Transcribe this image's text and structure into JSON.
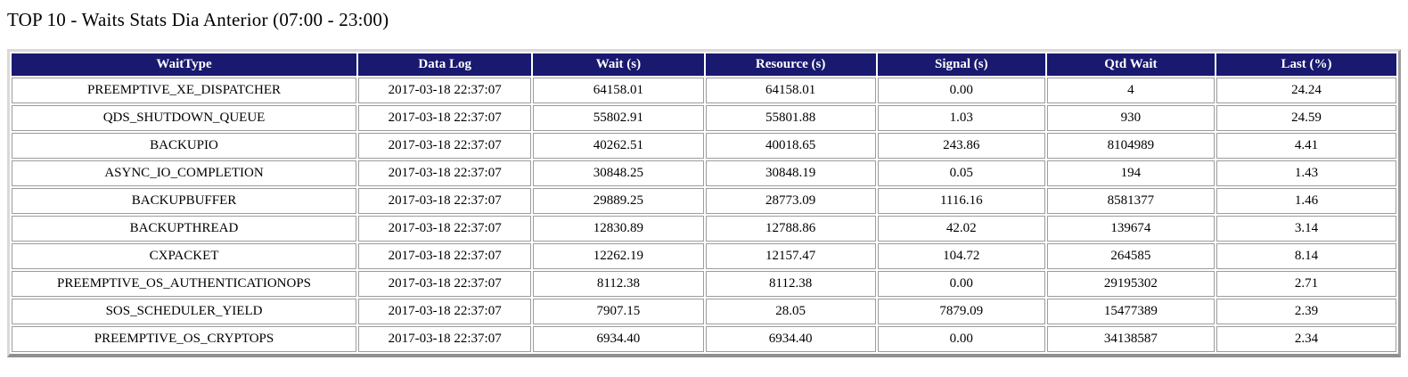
{
  "page": {
    "title": "TOP 10 - Waits Stats Dia Anterior (07:00 - 23:00)"
  },
  "colors": {
    "header_background": "#191970",
    "header_text": "#ffffff",
    "cell_border": "#9c9c9c"
  },
  "table": {
    "columns": [
      "WaitType",
      "Data Log",
      "Wait (s)",
      "Resource (s)",
      "Signal (s)",
      "Qtd Wait",
      "Last (%)"
    ],
    "rows": [
      [
        "PREEMPTIVE_XE_DISPATCHER",
        "2017-03-18 22:37:07",
        "64158.01",
        "64158.01",
        "0.00",
        "4",
        "24.24"
      ],
      [
        "QDS_SHUTDOWN_QUEUE",
        "2017-03-18 22:37:07",
        "55802.91",
        "55801.88",
        "1.03",
        "930",
        "24.59"
      ],
      [
        "BACKUPIO",
        "2017-03-18 22:37:07",
        "40262.51",
        "40018.65",
        "243.86",
        "8104989",
        "4.41"
      ],
      [
        "ASYNC_IO_COMPLETION",
        "2017-03-18 22:37:07",
        "30848.25",
        "30848.19",
        "0.05",
        "194",
        "1.43"
      ],
      [
        "BACKUPBUFFER",
        "2017-03-18 22:37:07",
        "29889.25",
        "28773.09",
        "1116.16",
        "8581377",
        "1.46"
      ],
      [
        "BACKUPTHREAD",
        "2017-03-18 22:37:07",
        "12830.89",
        "12788.86",
        "42.02",
        "139674",
        "3.14"
      ],
      [
        "CXPACKET",
        "2017-03-18 22:37:07",
        "12262.19",
        "12157.47",
        "104.72",
        "264585",
        "8.14"
      ],
      [
        "PREEMPTIVE_OS_AUTHENTICATIONOPS",
        "2017-03-18 22:37:07",
        "8112.38",
        "8112.38",
        "0.00",
        "29195302",
        "2.71"
      ],
      [
        "SOS_SCHEDULER_YIELD",
        "2017-03-18 22:37:07",
        "7907.15",
        "28.05",
        "7879.09",
        "15477389",
        "2.39"
      ],
      [
        "PREEMPTIVE_OS_CRYPTOPS",
        "2017-03-18 22:37:07",
        "6934.40",
        "6934.40",
        "0.00",
        "34138587",
        "2.34"
      ]
    ]
  }
}
